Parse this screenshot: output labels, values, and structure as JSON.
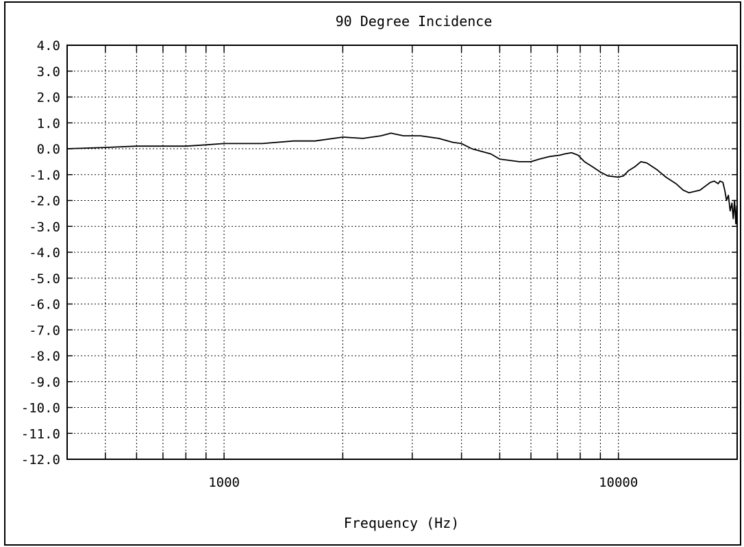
{
  "chart_data": {
    "type": "line",
    "title": "90 Degree Incidence",
    "xlabel": "Frequency (Hz)",
    "ylabel": "",
    "x_scale": "log",
    "xlim": [
      400,
      20000
    ],
    "ylim": [
      -12,
      4
    ],
    "grid": true,
    "x_tick_labels": [
      {
        "value": 1000,
        "label": "1000"
      },
      {
        "value": 10000,
        "label": "10000"
      }
    ],
    "y_tick_labels": [
      {
        "value": 4,
        "label": "4.0"
      },
      {
        "value": 3,
        "label": "3.0"
      },
      {
        "value": 2,
        "label": "2.0"
      },
      {
        "value": 1,
        "label": "1.0"
      },
      {
        "value": 0,
        "label": "0.0"
      },
      {
        "value": -1,
        "label": "-1.0"
      },
      {
        "value": -2,
        "label": "-2.0"
      },
      {
        "value": -3,
        "label": "-3.0"
      },
      {
        "value": -4,
        "label": "-4.0"
      },
      {
        "value": -5,
        "label": "-5.0"
      },
      {
        "value": -6,
        "label": "-6.0"
      },
      {
        "value": -7,
        "label": "-7.0"
      },
      {
        "value": -8,
        "label": "-8.0"
      },
      {
        "value": -9,
        "label": "-9.0"
      },
      {
        "value": -10,
        "label": "-10.0"
      },
      {
        "value": -11,
        "label": "-11.0"
      },
      {
        "value": -12,
        "label": "-12.0"
      }
    ],
    "series": [
      {
        "color": "#000000",
        "points": [
          [
            400,
            0.0
          ],
          [
            500,
            0.05
          ],
          [
            600,
            0.1
          ],
          [
            700,
            0.1
          ],
          [
            800,
            0.1
          ],
          [
            900,
            0.15
          ],
          [
            1000,
            0.2
          ],
          [
            1250,
            0.2
          ],
          [
            1500,
            0.3
          ],
          [
            1700,
            0.3
          ],
          [
            2000,
            0.45
          ],
          [
            2250,
            0.4
          ],
          [
            2500,
            0.5
          ],
          [
            2650,
            0.6
          ],
          [
            2850,
            0.5
          ],
          [
            3150,
            0.5
          ],
          [
            3500,
            0.4
          ],
          [
            3800,
            0.25
          ],
          [
            4000,
            0.2
          ],
          [
            4250,
            0.0
          ],
          [
            4750,
            -0.2
          ],
          [
            5000,
            -0.4
          ],
          [
            5300,
            -0.45
          ],
          [
            5600,
            -0.5
          ],
          [
            6000,
            -0.5
          ],
          [
            6300,
            -0.4
          ],
          [
            6700,
            -0.3
          ],
          [
            7100,
            -0.25
          ],
          [
            7300,
            -0.2
          ],
          [
            7600,
            -0.15
          ],
          [
            7900,
            -0.25
          ],
          [
            8200,
            -0.5
          ],
          [
            8600,
            -0.7
          ],
          [
            9000,
            -0.9
          ],
          [
            9400,
            -1.05
          ],
          [
            10000,
            -1.1
          ],
          [
            10300,
            -1.05
          ],
          [
            10600,
            -0.85
          ],
          [
            11000,
            -0.7
          ],
          [
            11400,
            -0.5
          ],
          [
            11800,
            -0.55
          ],
          [
            12500,
            -0.8
          ],
          [
            13200,
            -1.1
          ],
          [
            14000,
            -1.35
          ],
          [
            14600,
            -1.6
          ],
          [
            15100,
            -1.7
          ],
          [
            15600,
            -1.65
          ],
          [
            16100,
            -1.6
          ],
          [
            16600,
            -1.45
          ],
          [
            17100,
            -1.3
          ],
          [
            17500,
            -1.25
          ],
          [
            17900,
            -1.35
          ],
          [
            18100,
            -1.25
          ],
          [
            18400,
            -1.3
          ],
          [
            18600,
            -1.6
          ],
          [
            18800,
            -2.0
          ],
          [
            19000,
            -1.8
          ],
          [
            19200,
            -2.4
          ],
          [
            19400,
            -2.1
          ],
          [
            19550,
            -2.7
          ],
          [
            19700,
            -2.0
          ],
          [
            19850,
            -2.9
          ],
          [
            19950,
            -2.2
          ]
        ]
      }
    ]
  }
}
